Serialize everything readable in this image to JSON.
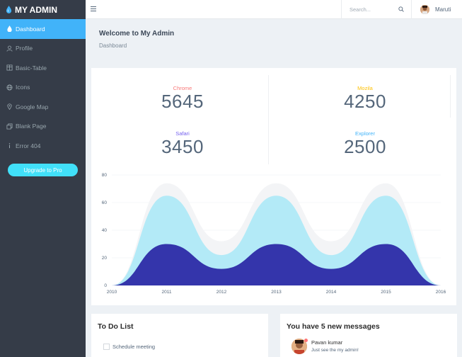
{
  "brand": {
    "title": "MY ADMIN"
  },
  "sidebar": {
    "items": [
      {
        "label": "Dashboard",
        "icon": "dashboard-icon",
        "active": true
      },
      {
        "label": "Profile",
        "icon": "user-icon",
        "active": false
      },
      {
        "label": "Basic-Table",
        "icon": "table-icon",
        "active": false
      },
      {
        "label": "Icons",
        "icon": "globe-icon",
        "active": false
      },
      {
        "label": "Google Map",
        "icon": "map-pin-icon",
        "active": false
      },
      {
        "label": "Blank Page",
        "icon": "copy-icon",
        "active": false
      },
      {
        "label": "Error 404",
        "icon": "info-icon",
        "active": false
      }
    ],
    "upgrade_label": "Upgrade to Pro"
  },
  "topbar": {
    "search_placeholder": "Search...",
    "user_name": "Maruti"
  },
  "page": {
    "title": "Welcome to My Admin",
    "breadcrumb": "Dashboard"
  },
  "stats": [
    {
      "label": "Chrome",
      "value": "5645",
      "color": "#f87878"
    },
    {
      "label": "Mozila",
      "value": "4250",
      "color": "#fec107"
    },
    {
      "label": "Safari",
      "value": "3450",
      "color": "#7460ee"
    },
    {
      "label": "Explorer",
      "value": "2500",
      "color": "#41b3f9"
    }
  ],
  "chart_data": {
    "type": "area",
    "x": [
      2010,
      2011,
      2012,
      2013,
      2014,
      2015,
      2016
    ],
    "x_tick_labels": [
      "2010",
      "2011",
      "2012",
      "2013",
      "2014",
      "2015",
      "2016"
    ],
    "y_tick_labels": [
      "0",
      "20",
      "40",
      "60",
      "80"
    ],
    "ylim": [
      0,
      80
    ],
    "series": [
      {
        "values": [
          0,
          74,
          32,
          74,
          32,
          74,
          0
        ],
        "color": "#f3f4f6"
      },
      {
        "values": [
          0,
          65,
          22,
          65,
          22,
          65,
          0
        ],
        "color": "#b3eaf7"
      },
      {
        "values": [
          0,
          30,
          12,
          30,
          12,
          30,
          0
        ],
        "color": "#3435ab"
      }
    ],
    "grid": true
  },
  "todo": {
    "title": "To Do List",
    "items": [
      {
        "label": "Schedule meeting",
        "checked": false
      }
    ]
  },
  "messages": {
    "title": "You have 5 new messages",
    "items": [
      {
        "name": "Pavan kumar",
        "text": "Just see the my admin!"
      }
    ]
  }
}
